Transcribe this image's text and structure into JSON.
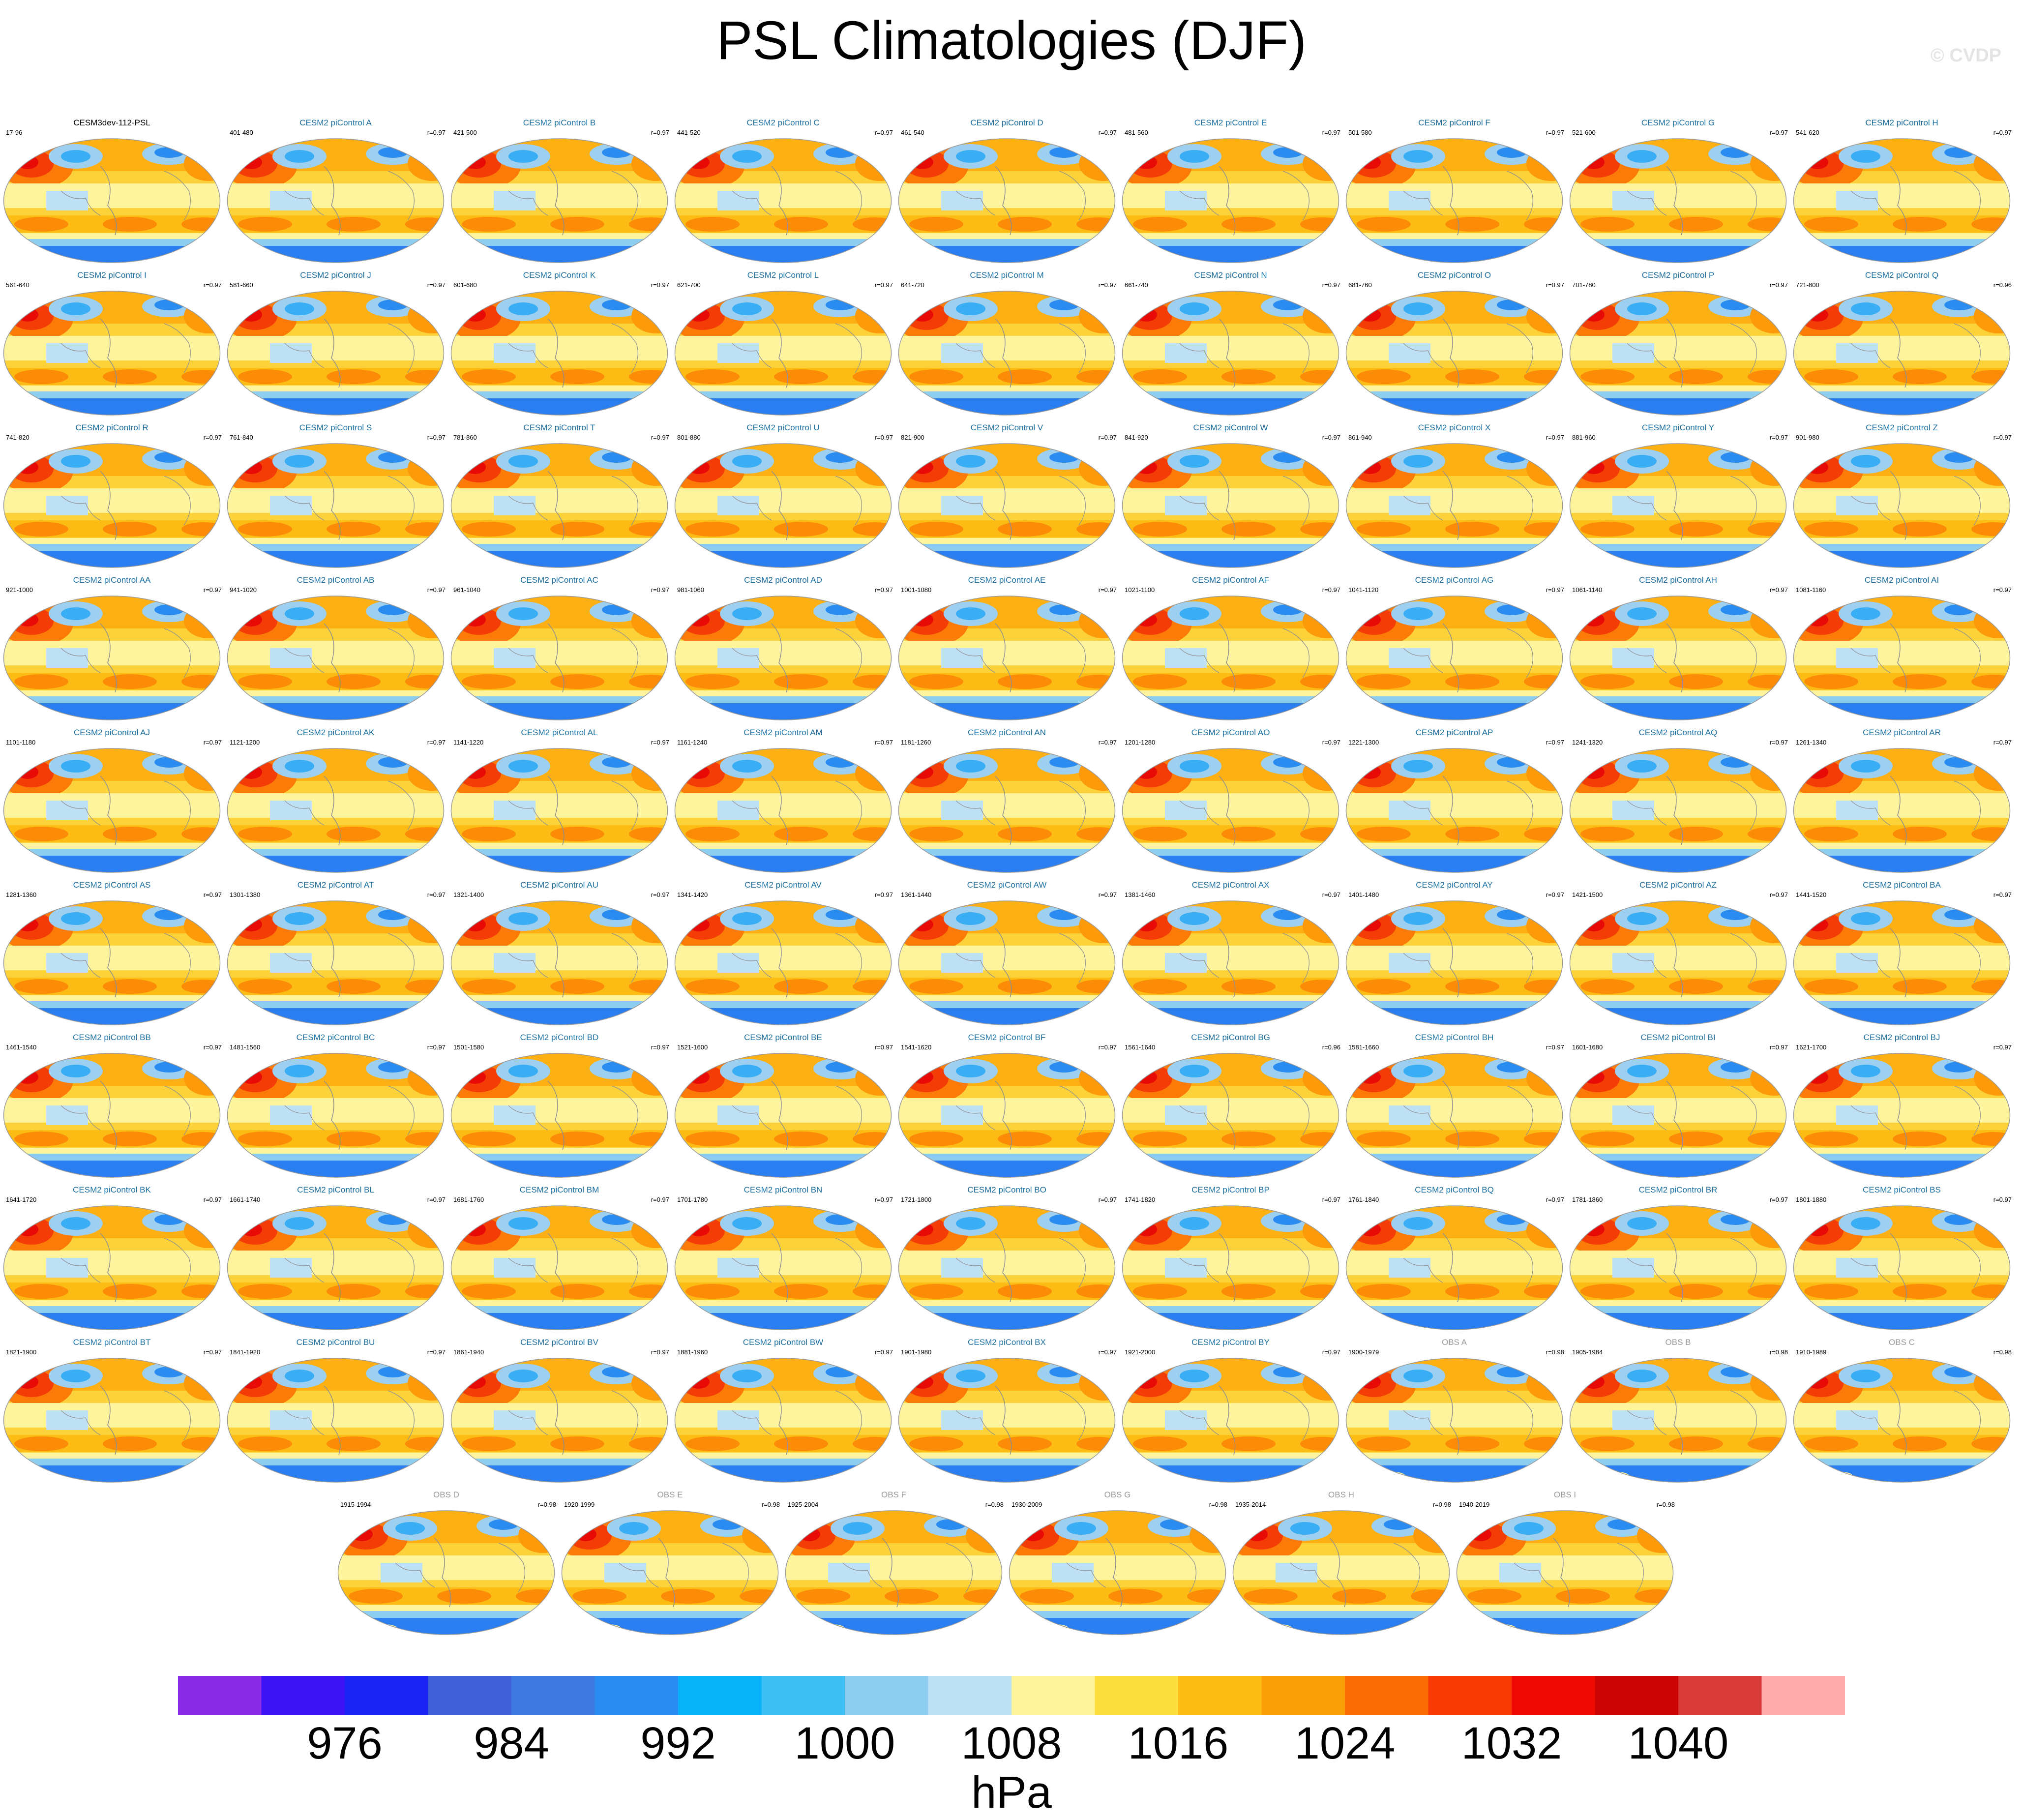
{
  "title": "PSL Climatologies (DJF)",
  "credit": "© CVDP",
  "chart_data": {
    "type": "heatmap",
    "variable": "PSL",
    "season": "DJF",
    "panels": [
      {
        "name": "CESM3dev-112-PSL",
        "years": "17-96",
        "r": ""
      },
      {
        "name": "CESM2 piControl A",
        "years": "401-480",
        "r": "r=0.97"
      },
      {
        "name": "CESM2 piControl B",
        "years": "421-500",
        "r": "r=0.97"
      },
      {
        "name": "CESM2 piControl C",
        "years": "441-520",
        "r": "r=0.97"
      },
      {
        "name": "CESM2 piControl D",
        "years": "461-540",
        "r": "r=0.97"
      },
      {
        "name": "CESM2 piControl E",
        "years": "481-560",
        "r": "r=0.97"
      },
      {
        "name": "CESM2 piControl F",
        "years": "501-580",
        "r": "r=0.97"
      },
      {
        "name": "CESM2 piControl G",
        "years": "521-600",
        "r": "r=0.97"
      },
      {
        "name": "CESM2 piControl H",
        "years": "541-620",
        "r": "r=0.97"
      },
      {
        "name": "CESM2 piControl I",
        "years": "561-640",
        "r": "r=0.97"
      },
      {
        "name": "CESM2 piControl J",
        "years": "581-660",
        "r": "r=0.97"
      },
      {
        "name": "CESM2 piControl K",
        "years": "601-680",
        "r": "r=0.97"
      },
      {
        "name": "CESM2 piControl L",
        "years": "621-700",
        "r": "r=0.97"
      },
      {
        "name": "CESM2 piControl M",
        "years": "641-720",
        "r": "r=0.97"
      },
      {
        "name": "CESM2 piControl N",
        "years": "661-740",
        "r": "r=0.97"
      },
      {
        "name": "CESM2 piControl O",
        "years": "681-760",
        "r": "r=0.97"
      },
      {
        "name": "CESM2 piControl P",
        "years": "701-780",
        "r": "r=0.97"
      },
      {
        "name": "CESM2 piControl Q",
        "years": "721-800",
        "r": "r=0.96"
      },
      {
        "name": "CESM2 piControl R",
        "years": "741-820",
        "r": "r=0.97"
      },
      {
        "name": "CESM2 piControl S",
        "years": "761-840",
        "r": "r=0.97"
      },
      {
        "name": "CESM2 piControl T",
        "years": "781-860",
        "r": "r=0.97"
      },
      {
        "name": "CESM2 piControl U",
        "years": "801-880",
        "r": "r=0.97"
      },
      {
        "name": "CESM2 piControl V",
        "years": "821-900",
        "r": "r=0.97"
      },
      {
        "name": "CESM2 piControl W",
        "years": "841-920",
        "r": "r=0.97"
      },
      {
        "name": "CESM2 piControl X",
        "years": "861-940",
        "r": "r=0.97"
      },
      {
        "name": "CESM2 piControl Y",
        "years": "881-960",
        "r": "r=0.97"
      },
      {
        "name": "CESM2 piControl Z",
        "years": "901-980",
        "r": "r=0.97"
      },
      {
        "name": "CESM2 piControl AA",
        "years": "921-1000",
        "r": "r=0.97"
      },
      {
        "name": "CESM2 piControl AB",
        "years": "941-1020",
        "r": "r=0.97"
      },
      {
        "name": "CESM2 piControl AC",
        "years": "961-1040",
        "r": "r=0.97"
      },
      {
        "name": "CESM2 piControl AD",
        "years": "981-1060",
        "r": "r=0.97"
      },
      {
        "name": "CESM2 piControl AE",
        "years": "1001-1080",
        "r": "r=0.97"
      },
      {
        "name": "CESM2 piControl AF",
        "years": "1021-1100",
        "r": "r=0.97"
      },
      {
        "name": "CESM2 piControl AG",
        "years": "1041-1120",
        "r": "r=0.97"
      },
      {
        "name": "CESM2 piControl AH",
        "years": "1061-1140",
        "r": "r=0.97"
      },
      {
        "name": "CESM2 piControl AI",
        "years": "1081-1160",
        "r": "r=0.97"
      },
      {
        "name": "CESM2 piControl AJ",
        "years": "1101-1180",
        "r": "r=0.97"
      },
      {
        "name": "CESM2 piControl AK",
        "years": "1121-1200",
        "r": "r=0.97"
      },
      {
        "name": "CESM2 piControl AL",
        "years": "1141-1220",
        "r": "r=0.97"
      },
      {
        "name": "CESM2 piControl AM",
        "years": "1161-1240",
        "r": "r=0.97"
      },
      {
        "name": "CESM2 piControl AN",
        "years": "1181-1260",
        "r": "r=0.97"
      },
      {
        "name": "CESM2 piControl AO",
        "years": "1201-1280",
        "r": "r=0.97"
      },
      {
        "name": "CESM2 piControl AP",
        "years": "1221-1300",
        "r": "r=0.97"
      },
      {
        "name": "CESM2 piControl AQ",
        "years": "1241-1320",
        "r": "r=0.97"
      },
      {
        "name": "CESM2 piControl AR",
        "years": "1261-1340",
        "r": "r=0.97"
      },
      {
        "name": "CESM2 piControl AS",
        "years": "1281-1360",
        "r": "r=0.97"
      },
      {
        "name": "CESM2 piControl AT",
        "years": "1301-1380",
        "r": "r=0.97"
      },
      {
        "name": "CESM2 piControl AU",
        "years": "1321-1400",
        "r": "r=0.97"
      },
      {
        "name": "CESM2 piControl AV",
        "years": "1341-1420",
        "r": "r=0.97"
      },
      {
        "name": "CESM2 piControl AW",
        "years": "1361-1440",
        "r": "r=0.97"
      },
      {
        "name": "CESM2 piControl AX",
        "years": "1381-1460",
        "r": "r=0.97"
      },
      {
        "name": "CESM2 piControl AY",
        "years": "1401-1480",
        "r": "r=0.97"
      },
      {
        "name": "CESM2 piControl AZ",
        "years": "1421-1500",
        "r": "r=0.97"
      },
      {
        "name": "CESM2 piControl BA",
        "years": "1441-1520",
        "r": "r=0.97"
      },
      {
        "name": "CESM2 piControl BB",
        "years": "1461-1540",
        "r": "r=0.97"
      },
      {
        "name": "CESM2 piControl BC",
        "years": "1481-1560",
        "r": "r=0.97"
      },
      {
        "name": "CESM2 piControl BD",
        "years": "1501-1580",
        "r": "r=0.97"
      },
      {
        "name": "CESM2 piControl BE",
        "years": "1521-1600",
        "r": "r=0.97"
      },
      {
        "name": "CESM2 piControl BF",
        "years": "1541-1620",
        "r": "r=0.97"
      },
      {
        "name": "CESM2 piControl BG",
        "years": "1561-1640",
        "r": "r=0.96"
      },
      {
        "name": "CESM2 piControl BH",
        "years": "1581-1660",
        "r": "r=0.97"
      },
      {
        "name": "CESM2 piControl BI",
        "years": "1601-1680",
        "r": "r=0.97"
      },
      {
        "name": "CESM2 piControl BJ",
        "years": "1621-1700",
        "r": "r=0.97"
      },
      {
        "name": "CESM2 piControl BK",
        "years": "1641-1720",
        "r": "r=0.97"
      },
      {
        "name": "CESM2 piControl BL",
        "years": "1661-1740",
        "r": "r=0.97"
      },
      {
        "name": "CESM2 piControl BM",
        "years": "1681-1760",
        "r": "r=0.97"
      },
      {
        "name": "CESM2 piControl BN",
        "years": "1701-1780",
        "r": "r=0.97"
      },
      {
        "name": "CESM2 piControl BO",
        "years": "1721-1800",
        "r": "r=0.97"
      },
      {
        "name": "CESM2 piControl BP",
        "years": "1741-1820",
        "r": "r=0.97"
      },
      {
        "name": "CESM2 piControl BQ",
        "years": "1761-1840",
        "r": "r=0.97"
      },
      {
        "name": "CESM2 piControl BR",
        "years": "1781-1860",
        "r": "r=0.97"
      },
      {
        "name": "CESM2 piControl BS",
        "years": "1801-1880",
        "r": "r=0.97"
      },
      {
        "name": "CESM2 piControl BT",
        "years": "1821-1900",
        "r": "r=0.97"
      },
      {
        "name": "CESM2 piControl BU",
        "years": "1841-1920",
        "r": "r=0.97"
      },
      {
        "name": "CESM2 piControl BV",
        "years": "1861-1940",
        "r": "r=0.97"
      },
      {
        "name": "CESM2 piControl BW",
        "years": "1881-1960",
        "r": "r=0.97"
      },
      {
        "name": "CESM2 piControl BX",
        "years": "1901-1980",
        "r": "r=0.97"
      },
      {
        "name": "CESM2 piControl BY",
        "years": "1921-2000",
        "r": "r=0.97"
      },
      {
        "name": "OBS A",
        "years": "1900-1979",
        "r": "r=0.98",
        "obs": true
      },
      {
        "name": "OBS B",
        "years": "1905-1984",
        "r": "r=0.98",
        "obs": true
      },
      {
        "name": "OBS C",
        "years": "1910-1989",
        "r": "r=0.98",
        "obs": true
      },
      {
        "name": "OBS D",
        "years": "1915-1994",
        "r": "r=0.98",
        "obs": true
      },
      {
        "name": "OBS E",
        "years": "1920-1999",
        "r": "r=0.98",
        "obs": true
      },
      {
        "name": "OBS F",
        "years": "1925-2004",
        "r": "r=0.98",
        "obs": true
      },
      {
        "name": "OBS G",
        "years": "1930-2009",
        "r": "r=0.98",
        "obs": true
      },
      {
        "name": "OBS H",
        "years": "1935-2014",
        "r": "r=0.98",
        "obs": true
      },
      {
        "name": "OBS I",
        "years": "1940-2019",
        "r": "r=0.98",
        "obs": true
      }
    ],
    "colorbar": {
      "units": "hPa",
      "levels": [
        972,
        976,
        980,
        984,
        988,
        992,
        996,
        1000,
        1004,
        1008,
        1012,
        1016,
        1020,
        1024,
        1028,
        1032,
        1036,
        1040,
        1044
      ],
      "tick_labels": [
        "976",
        "984",
        "992",
        "1000",
        "1008",
        "1016",
        "1024",
        "1032",
        "1040"
      ],
      "colors": [
        "#8a2be6",
        "#3b13f5",
        "#1a23f2",
        "#3f5fd8",
        "#3f78e0",
        "#2a8cf0",
        "#08b2f8",
        "#3cc0f4",
        "#8ccdf0",
        "#bde0f4",
        "#fff49e",
        "#fcde3c",
        "#fcbc14",
        "#fca00a",
        "#fc6c06",
        "#f83a04",
        "#f00a04",
        "#cc0404",
        "#d83a3a",
        "#fcaaaa"
      ]
    },
    "title": "PSL Climatologies (DJF)"
  }
}
